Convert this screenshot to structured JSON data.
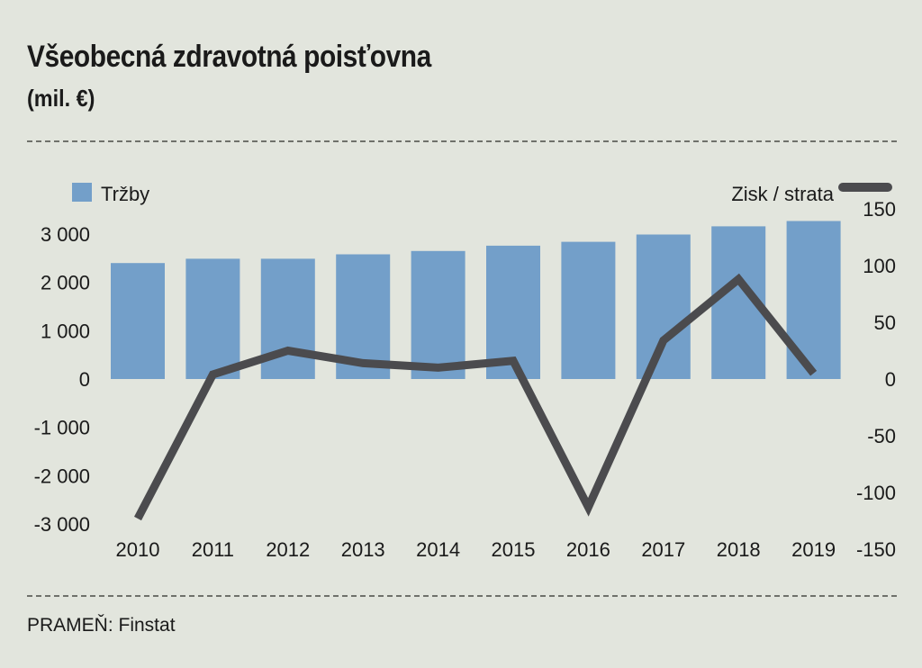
{
  "header": {
    "title": "Všeobecná zdravotná poisťovna",
    "subtitle": "(mil. €)"
  },
  "footer": {
    "source": "PRAMEŇ: Finstat"
  },
  "colors": {
    "bar": "#739fc9",
    "line": "#4b4b4e",
    "background": "#e2e5dd"
  },
  "chart_data": {
    "type": "bar",
    "title": "Všeobecná zdravotná poisťovna",
    "subtitle": "(mil. €)",
    "categories": [
      "2010",
      "2011",
      "2012",
      "2013",
      "2014",
      "2015",
      "2016",
      "2017",
      "2018",
      "2019"
    ],
    "series": [
      {
        "name": "Tržby",
        "type": "bar",
        "axis": "left",
        "values": [
          2400,
          2490,
          2490,
          2580,
          2650,
          2760,
          2840,
          2990,
          3160,
          3270
        ]
      },
      {
        "name": "Zisk / strata",
        "type": "line",
        "axis": "right",
        "values": [
          -123,
          4,
          25,
          14,
          10,
          16,
          -113,
          34,
          88,
          5
        ]
      }
    ],
    "left_axis": {
      "ylim": [
        -3000,
        3000
      ],
      "ticks": [
        3000,
        2000,
        1000,
        0,
        -1000,
        -2000,
        -3000
      ],
      "tick_labels": [
        "3 000",
        "2 000",
        "1 000",
        "0",
        "-1 000",
        "-2 000",
        "-3 000"
      ]
    },
    "right_axis": {
      "ylim": [
        -150,
        150
      ],
      "ticks": [
        150,
        100,
        50,
        0,
        -50,
        -100,
        -150
      ],
      "tick_labels": [
        "150",
        "100",
        "50",
        "0",
        "-50",
        "-100",
        "-150"
      ]
    },
    "legend": {
      "bar_label": "Tržby",
      "line_label": "Zisk / strata",
      "placement": "top"
    },
    "grid": false
  }
}
